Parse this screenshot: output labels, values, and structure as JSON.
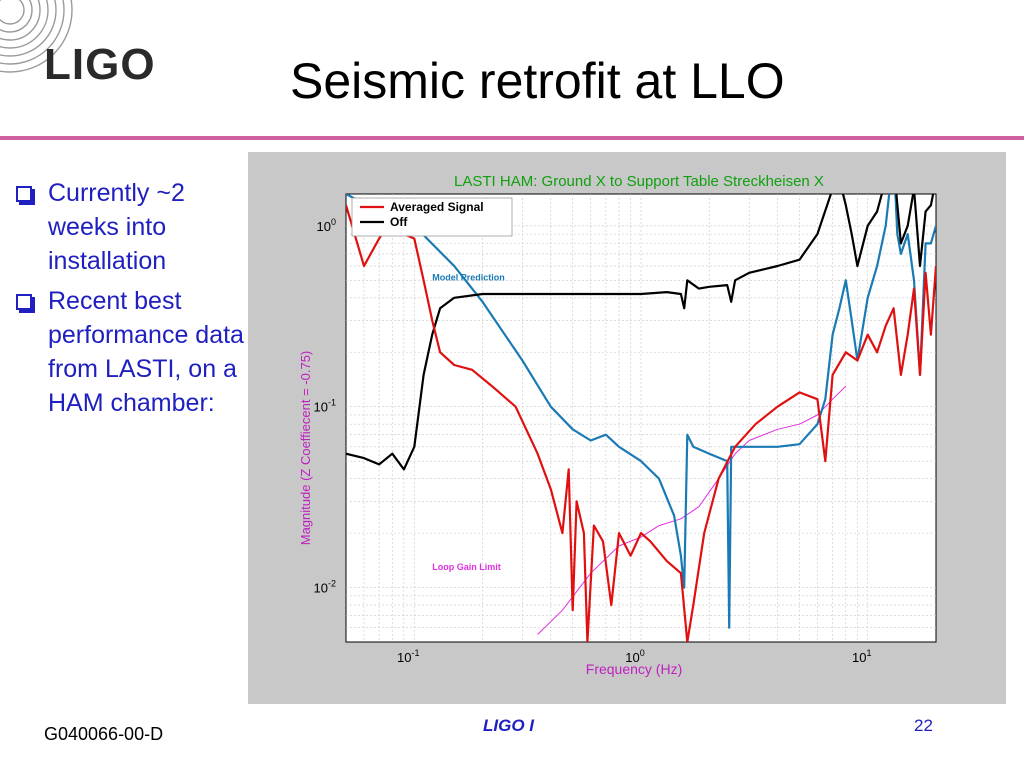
{
  "slide": {
    "logo_text": "LIGO",
    "title": "Seismic retrofit at LLO",
    "bullets": [
      "Currently ~2 weeks into installation",
      "Recent best performance data from LASTI, on a HAM chamber:"
    ],
    "footer_left": "G040066-00-D",
    "footer_center": "LIGO I",
    "footer_right": "22",
    "accent_color": "#d0609e",
    "text_color": "#2020c0"
  },
  "chart_data": {
    "type": "line",
    "title": "LASTI HAM: Ground X to Support Table Streckheisen X",
    "xlabel": "Frequency (Hz)",
    "ylabel": "Magnitude (Z Coeffiecent = -0.75)",
    "x_scale": "log",
    "y_scale": "log",
    "xlim": [
      0.05,
      20
    ],
    "ylim": [
      0.005,
      1.5
    ],
    "x_ticks": [
      {
        "value": 0.1,
        "base": "10",
        "exp": "-1"
      },
      {
        "value": 1,
        "base": "10",
        "exp": "0"
      },
      {
        "value": 10,
        "base": "10",
        "exp": "1"
      }
    ],
    "y_ticks": [
      {
        "value": 0.01,
        "base": "10",
        "exp": "-2"
      },
      {
        "value": 0.1,
        "base": "10",
        "exp": "-1"
      },
      {
        "value": 1,
        "base": "10",
        "exp": "0"
      }
    ],
    "grid": true,
    "legend_position": "top-left",
    "annotations": [
      {
        "text": "Model Prediction",
        "x": 0.12,
        "y": 0.5,
        "color": "#1a7ab5"
      },
      {
        "text": "Loop Gain Limit",
        "x": 0.12,
        "y": 0.0125,
        "color": "#e030e0"
      }
    ],
    "series": [
      {
        "name": "Averaged Signal",
        "legend": true,
        "color": "#e01010",
        "points": [
          [
            0.05,
            1.3
          ],
          [
            0.06,
            0.6
          ],
          [
            0.07,
            0.85
          ],
          [
            0.08,
            1.1
          ],
          [
            0.09,
            0.9
          ],
          [
            0.1,
            0.85
          ],
          [
            0.11,
            0.5
          ],
          [
            0.12,
            0.3
          ],
          [
            0.13,
            0.2
          ],
          [
            0.15,
            0.17
          ],
          [
            0.18,
            0.16
          ],
          [
            0.22,
            0.13
          ],
          [
            0.28,
            0.1
          ],
          [
            0.35,
            0.055
          ],
          [
            0.4,
            0.035
          ],
          [
            0.45,
            0.02
          ],
          [
            0.48,
            0.045
          ],
          [
            0.5,
            0.0075
          ],
          [
            0.52,
            0.03
          ],
          [
            0.56,
            0.02
          ],
          [
            0.58,
            0.005
          ],
          [
            0.62,
            0.022
          ],
          [
            0.68,
            0.018
          ],
          [
            0.74,
            0.008
          ],
          [
            0.8,
            0.02
          ],
          [
            0.9,
            0.015
          ],
          [
            1.0,
            0.02
          ],
          [
            1.1,
            0.018
          ],
          [
            1.3,
            0.014
          ],
          [
            1.5,
            0.012
          ],
          [
            1.6,
            0.005
          ],
          [
            1.7,
            0.008
          ],
          [
            1.9,
            0.02
          ],
          [
            2.2,
            0.04
          ],
          [
            2.6,
            0.06
          ],
          [
            3.2,
            0.08
          ],
          [
            4.0,
            0.1
          ],
          [
            5.0,
            0.12
          ],
          [
            6.0,
            0.11
          ],
          [
            6.5,
            0.05
          ],
          [
            7.0,
            0.15
          ],
          [
            8.0,
            0.2
          ],
          [
            9.0,
            0.18
          ],
          [
            10,
            0.25
          ],
          [
            11,
            0.2
          ],
          [
            12,
            0.28
          ],
          [
            13,
            0.35
          ],
          [
            14,
            0.15
          ],
          [
            15,
            0.25
          ],
          [
            16,
            0.45
          ],
          [
            17,
            0.15
          ],
          [
            18,
            0.55
          ],
          [
            19,
            0.25
          ],
          [
            20,
            0.6
          ]
        ]
      },
      {
        "name": "Off",
        "legend": true,
        "color": "#000000",
        "points": [
          [
            0.05,
            0.055
          ],
          [
            0.06,
            0.052
          ],
          [
            0.07,
            0.048
          ],
          [
            0.08,
            0.055
          ],
          [
            0.09,
            0.045
          ],
          [
            0.1,
            0.06
          ],
          [
            0.11,
            0.15
          ],
          [
            0.12,
            0.25
          ],
          [
            0.13,
            0.35
          ],
          [
            0.15,
            0.4
          ],
          [
            0.2,
            0.42
          ],
          [
            0.3,
            0.42
          ],
          [
            0.5,
            0.42
          ],
          [
            0.8,
            0.42
          ],
          [
            1.0,
            0.42
          ],
          [
            1.3,
            0.43
          ],
          [
            1.5,
            0.42
          ],
          [
            1.55,
            0.35
          ],
          [
            1.6,
            0.5
          ],
          [
            1.8,
            0.45
          ],
          [
            2.0,
            0.46
          ],
          [
            2.4,
            0.47
          ],
          [
            2.5,
            0.38
          ],
          [
            2.6,
            0.5
          ],
          [
            3.0,
            0.55
          ],
          [
            4.0,
            0.6
          ],
          [
            5.0,
            0.65
          ],
          [
            6.0,
            0.9
          ],
          [
            7.0,
            1.6
          ],
          [
            7.5,
            1.8
          ],
          [
            8.0,
            1.3
          ],
          [
            8.5,
            0.9
          ],
          [
            9.0,
            0.6
          ],
          [
            10,
            1.0
          ],
          [
            11,
            1.2
          ],
          [
            12,
            1.8
          ],
          [
            13,
            2.2
          ],
          [
            14,
            0.8
          ],
          [
            15,
            1.0
          ],
          [
            16,
            1.6
          ],
          [
            17,
            0.6
          ],
          [
            18,
            1.2
          ],
          [
            19,
            1.3
          ],
          [
            20,
            1.8
          ]
        ]
      },
      {
        "name": "Model Prediction",
        "legend": false,
        "color": "#1a7ab5",
        "points": [
          [
            0.05,
            1.5
          ],
          [
            0.07,
            1.2
          ],
          [
            0.1,
            1.0
          ],
          [
            0.15,
            0.6
          ],
          [
            0.2,
            0.38
          ],
          [
            0.3,
            0.18
          ],
          [
            0.4,
            0.1
          ],
          [
            0.5,
            0.075
          ],
          [
            0.6,
            0.065
          ],
          [
            0.7,
            0.07
          ],
          [
            0.8,
            0.06
          ],
          [
            1.0,
            0.05
          ],
          [
            1.2,
            0.04
          ],
          [
            1.4,
            0.025
          ],
          [
            1.5,
            0.015
          ],
          [
            1.55,
            0.01
          ],
          [
            1.6,
            0.07
          ],
          [
            1.7,
            0.06
          ],
          [
            2.0,
            0.055
          ],
          [
            2.4,
            0.05
          ],
          [
            2.45,
            0.006
          ],
          [
            2.5,
            0.06
          ],
          [
            3.0,
            0.06
          ],
          [
            4.0,
            0.06
          ],
          [
            5.0,
            0.062
          ],
          [
            6.0,
            0.08
          ],
          [
            6.5,
            0.11
          ],
          [
            7.0,
            0.25
          ],
          [
            7.5,
            0.35
          ],
          [
            8.0,
            0.5
          ],
          [
            8.5,
            0.3
          ],
          [
            9.0,
            0.18
          ],
          [
            10,
            0.4
          ],
          [
            11,
            0.6
          ],
          [
            12,
            1.0
          ],
          [
            13,
            2.5
          ],
          [
            13.5,
            0.9
          ],
          [
            14,
            0.7
          ],
          [
            15,
            0.9
          ],
          [
            16,
            0.5
          ],
          [
            17,
            0.15
          ],
          [
            18,
            0.8
          ],
          [
            19,
            0.8
          ],
          [
            20,
            1.0
          ]
        ]
      },
      {
        "name": "Loop Gain Limit",
        "legend": false,
        "color": "#e030e0",
        "points": [
          [
            0.35,
            0.0055
          ],
          [
            0.45,
            0.0075
          ],
          [
            0.6,
            0.012
          ],
          [
            0.8,
            0.017
          ],
          [
            1.0,
            0.019
          ],
          [
            1.2,
            0.022
          ],
          [
            1.5,
            0.024
          ],
          [
            1.8,
            0.028
          ],
          [
            2.2,
            0.04
          ],
          [
            2.6,
            0.055
          ],
          [
            3.0,
            0.065
          ],
          [
            4.0,
            0.075
          ],
          [
            5.0,
            0.08
          ],
          [
            6.0,
            0.09
          ],
          [
            7.0,
            0.11
          ],
          [
            8.0,
            0.13
          ]
        ]
      }
    ]
  }
}
